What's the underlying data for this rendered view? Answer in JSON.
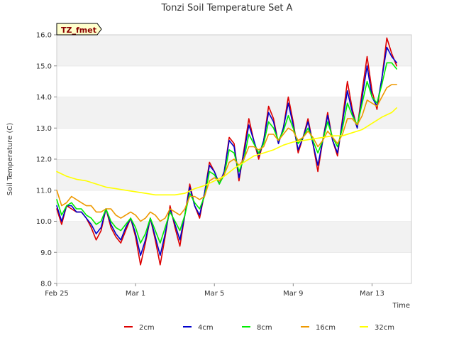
{
  "chart_data": {
    "type": "line",
    "title": "Tonzi Soil Temperature Set A",
    "xlabel": "Time",
    "ylabel": "Soil Temperature (C)",
    "badge": "TZ_fmet",
    "ylim": [
      8.0,
      16.0
    ],
    "xlim": [
      0,
      18
    ],
    "y_ticks": [
      8.0,
      9.0,
      10.0,
      11.0,
      12.0,
      13.0,
      14.0,
      15.0,
      16.0
    ],
    "y_tick_labels": [
      "8.0",
      "9.0",
      "10.0",
      "11.0",
      "12.0",
      "13.0",
      "14.0",
      "15.0",
      "16.0"
    ],
    "x_ticks": [
      0,
      4,
      8,
      12,
      16
    ],
    "x_tick_labels": [
      "Feb 25",
      "Mar 1",
      "Mar 5",
      "Mar 9",
      "Mar 13"
    ],
    "legend_position": "bottom-center",
    "grid": "horizontal bands",
    "series": [
      {
        "name": "2cm",
        "color": "#dd0000",
        "x": [
          0.0,
          0.25,
          0.5,
          0.75,
          1.0,
          1.25,
          1.5,
          1.75,
          2.0,
          2.25,
          2.5,
          2.75,
          3.0,
          3.25,
          3.5,
          3.75,
          4.0,
          4.25,
          4.5,
          4.75,
          5.0,
          5.25,
          5.5,
          5.75,
          6.0,
          6.25,
          6.5,
          6.75,
          7.0,
          7.25,
          7.5,
          7.75,
          8.0,
          8.25,
          8.5,
          8.75,
          9.0,
          9.25,
          9.5,
          9.75,
          10.0,
          10.25,
          10.5,
          10.75,
          11.0,
          11.25,
          11.5,
          11.75,
          12.0,
          12.25,
          12.5,
          12.75,
          13.0,
          13.25,
          13.5,
          13.75,
          14.0,
          14.25,
          14.5,
          14.75,
          15.0,
          15.25,
          15.5,
          15.75,
          16.0,
          16.25,
          16.5,
          16.75,
          17.0,
          17.25
        ],
        "values": [
          10.4,
          9.9,
          10.5,
          10.4,
          10.3,
          10.3,
          10.1,
          9.8,
          9.4,
          9.7,
          10.4,
          9.8,
          9.5,
          9.3,
          9.7,
          10.1,
          9.5,
          8.6,
          9.3,
          10.1,
          9.4,
          8.6,
          9.5,
          10.5,
          9.8,
          9.2,
          10.2,
          11.2,
          10.5,
          10.1,
          10.9,
          11.9,
          11.6,
          11.2,
          11.6,
          12.7,
          12.5,
          11.3,
          12.3,
          13.3,
          12.6,
          12.0,
          12.6,
          13.7,
          13.3,
          12.5,
          13.0,
          14.0,
          13.2,
          12.2,
          12.7,
          13.3,
          12.5,
          11.6,
          12.6,
          13.5,
          12.6,
          12.1,
          13.3,
          14.5,
          13.6,
          13.0,
          14.2,
          15.3,
          14.2,
          13.6,
          14.6,
          15.9,
          15.4,
          15.0
        ]
      },
      {
        "name": "4cm",
        "color": "#0000cc",
        "x": [
          0.0,
          0.25,
          0.5,
          0.75,
          1.0,
          1.25,
          1.5,
          1.75,
          2.0,
          2.25,
          2.5,
          2.75,
          3.0,
          3.25,
          3.5,
          3.75,
          4.0,
          4.25,
          4.5,
          4.75,
          5.0,
          5.25,
          5.5,
          5.75,
          6.0,
          6.25,
          6.5,
          6.75,
          7.0,
          7.25,
          7.5,
          7.75,
          8.0,
          8.25,
          8.5,
          8.75,
          9.0,
          9.25,
          9.5,
          9.75,
          10.0,
          10.25,
          10.5,
          10.75,
          11.0,
          11.25,
          11.5,
          11.75,
          12.0,
          12.25,
          12.5,
          12.75,
          13.0,
          13.25,
          13.5,
          13.75,
          14.0,
          14.25,
          14.5,
          14.75,
          15.0,
          15.25,
          15.5,
          15.75,
          16.0,
          16.25,
          16.5,
          16.75,
          17.0,
          17.25
        ],
        "values": [
          10.5,
          10.0,
          10.5,
          10.5,
          10.3,
          10.3,
          10.1,
          9.9,
          9.6,
          9.8,
          10.4,
          9.9,
          9.6,
          9.4,
          9.8,
          10.1,
          9.6,
          8.9,
          9.4,
          10.1,
          9.5,
          8.9,
          9.6,
          10.4,
          9.9,
          9.4,
          10.2,
          11.1,
          10.5,
          10.2,
          10.9,
          11.8,
          11.6,
          11.2,
          11.6,
          12.6,
          12.4,
          11.4,
          12.2,
          13.1,
          12.6,
          12.1,
          12.6,
          13.5,
          13.2,
          12.5,
          13.0,
          13.8,
          13.1,
          12.3,
          12.7,
          13.2,
          12.5,
          11.8,
          12.6,
          13.4,
          12.6,
          12.2,
          13.2,
          14.2,
          13.5,
          13.0,
          14.0,
          15.0,
          14.0,
          13.7,
          14.6,
          15.6,
          15.3,
          15.1
        ]
      },
      {
        "name": "8cm",
        "color": "#00ee00",
        "x": [
          0.0,
          0.25,
          0.5,
          0.75,
          1.0,
          1.25,
          1.5,
          1.75,
          2.0,
          2.25,
          2.5,
          2.75,
          3.0,
          3.25,
          3.5,
          3.75,
          4.0,
          4.25,
          4.5,
          4.75,
          5.0,
          5.25,
          5.5,
          5.75,
          6.0,
          6.25,
          6.5,
          6.75,
          7.0,
          7.25,
          7.5,
          7.75,
          8.0,
          8.25,
          8.5,
          8.75,
          9.0,
          9.25,
          9.5,
          9.75,
          10.0,
          10.25,
          10.5,
          10.75,
          11.0,
          11.25,
          11.5,
          11.75,
          12.0,
          12.25,
          12.5,
          12.75,
          13.0,
          13.25,
          13.5,
          13.75,
          14.0,
          14.25,
          14.5,
          14.75,
          15.0,
          15.25,
          15.5,
          15.75,
          16.0,
          16.25,
          16.5,
          16.75,
          17.0,
          17.25
        ],
        "values": [
          10.7,
          10.2,
          10.5,
          10.6,
          10.4,
          10.4,
          10.2,
          10.1,
          9.9,
          10.0,
          10.4,
          10.0,
          9.8,
          9.7,
          9.9,
          10.1,
          9.8,
          9.3,
          9.6,
          10.1,
          9.7,
          9.3,
          9.8,
          10.3,
          10.0,
          9.7,
          10.2,
          10.9,
          10.6,
          10.4,
          10.8,
          11.6,
          11.5,
          11.2,
          11.5,
          12.3,
          12.2,
          11.6,
          12.0,
          12.8,
          12.5,
          12.2,
          12.5,
          13.2,
          13.0,
          12.6,
          12.9,
          13.4,
          13.0,
          12.5,
          12.7,
          13.0,
          12.6,
          12.2,
          12.6,
          13.2,
          12.7,
          12.4,
          13.0,
          13.8,
          13.4,
          13.1,
          13.8,
          14.5,
          14.0,
          13.8,
          14.4,
          15.1,
          15.1,
          14.9
        ]
      },
      {
        "name": "16cm",
        "color": "#ee9900",
        "x": [
          0.0,
          0.25,
          0.5,
          0.75,
          1.0,
          1.25,
          1.5,
          1.75,
          2.0,
          2.25,
          2.5,
          2.75,
          3.0,
          3.25,
          3.5,
          3.75,
          4.0,
          4.25,
          4.5,
          4.75,
          5.0,
          5.25,
          5.5,
          5.75,
          6.0,
          6.25,
          6.5,
          6.75,
          7.0,
          7.25,
          7.5,
          7.75,
          8.0,
          8.25,
          8.5,
          8.75,
          9.0,
          9.25,
          9.5,
          9.75,
          10.0,
          10.25,
          10.5,
          10.75,
          11.0,
          11.25,
          11.5,
          11.75,
          12.0,
          12.25,
          12.5,
          12.75,
          13.0,
          13.25,
          13.5,
          13.75,
          14.0,
          14.25,
          14.5,
          14.75,
          15.0,
          15.25,
          15.5,
          15.75,
          16.0,
          16.25,
          16.5,
          16.75,
          17.0,
          17.25
        ],
        "values": [
          11.0,
          10.5,
          10.6,
          10.8,
          10.7,
          10.6,
          10.5,
          10.5,
          10.3,
          10.3,
          10.4,
          10.4,
          10.2,
          10.1,
          10.2,
          10.3,
          10.2,
          10.0,
          10.1,
          10.3,
          10.2,
          10.0,
          10.1,
          10.4,
          10.3,
          10.2,
          10.4,
          10.8,
          10.8,
          10.7,
          10.8,
          11.3,
          11.4,
          11.3,
          11.5,
          11.9,
          12.0,
          11.8,
          12.0,
          12.4,
          12.4,
          12.3,
          12.4,
          12.8,
          12.8,
          12.6,
          12.8,
          13.0,
          12.9,
          12.6,
          12.7,
          12.9,
          12.7,
          12.4,
          12.6,
          12.9,
          12.7,
          12.5,
          12.8,
          13.3,
          13.3,
          13.1,
          13.4,
          13.9,
          13.8,
          13.7,
          14.0,
          14.3,
          14.4,
          14.4
        ]
      },
      {
        "name": "32cm",
        "color": "#ffff00",
        "x": [
          0.0,
          0.5,
          1.0,
          1.5,
          2.0,
          2.5,
          3.0,
          3.5,
          4.0,
          4.5,
          5.0,
          5.5,
          6.0,
          6.5,
          7.0,
          7.5,
          8.0,
          8.5,
          9.0,
          9.5,
          10.0,
          10.5,
          11.0,
          11.5,
          12.0,
          12.5,
          13.0,
          13.5,
          14.0,
          14.5,
          15.0,
          15.5,
          16.0,
          16.5,
          17.0,
          17.25
        ],
        "values": [
          11.6,
          11.45,
          11.35,
          11.3,
          11.2,
          11.1,
          11.05,
          11.0,
          10.95,
          10.9,
          10.85,
          10.85,
          10.85,
          10.9,
          11.05,
          11.15,
          11.3,
          11.45,
          11.7,
          11.9,
          12.1,
          12.2,
          12.3,
          12.45,
          12.55,
          12.6,
          12.65,
          12.7,
          12.75,
          12.75,
          12.85,
          12.95,
          13.15,
          13.35,
          13.5,
          13.65
        ]
      }
    ]
  }
}
